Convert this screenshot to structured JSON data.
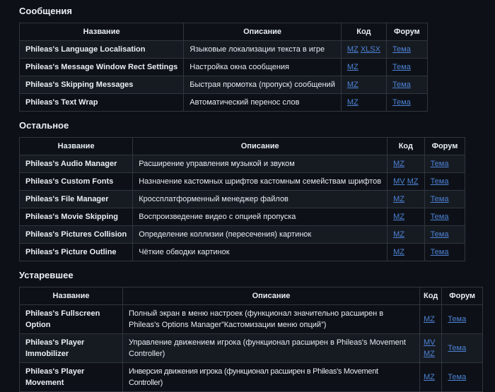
{
  "colors": {
    "page_background": "#0d1117",
    "row_muted_background": "#161b22",
    "table_border": "#30363d",
    "text": "#e6edf3",
    "link": "#4d82d6"
  },
  "sections": [
    {
      "title": "Сообщения",
      "columns": [
        "Название",
        "Описание",
        "Код",
        "Форум"
      ],
      "rows": [
        {
          "name": "Phileas's Language Localisation",
          "description": "Языковые локализации текста в игре",
          "code": [
            "MZ",
            "XLSX"
          ],
          "forum": "Тема"
        },
        {
          "name": "Phileas's Message Window Rect Settings",
          "description": "Настройка окна сообщения",
          "code": [
            "MZ"
          ],
          "forum": "Тема"
        },
        {
          "name": "Phileas's Skipping Messages",
          "description": "Быстрая промотка (пропуск) сообщений",
          "code": [
            "MZ"
          ],
          "forum": "Тема"
        },
        {
          "name": "Phileas's Text Wrap",
          "description": "Автоматический перенос слов",
          "code": [
            "MZ"
          ],
          "forum": "Тема"
        }
      ]
    },
    {
      "title": "Остальное",
      "columns": [
        "Название",
        "Описание",
        "Код",
        "Форум"
      ],
      "rows": [
        {
          "name": "Phileas's Audio Manager",
          "description": "Расширение управления музыкой и звуком",
          "code": [
            "MZ"
          ],
          "forum": "Тема"
        },
        {
          "name": "Phileas's Custom Fonts",
          "description": "Назначение кастомных шрифтов кастомным семействам шрифтов",
          "code": [
            "MV",
            "MZ"
          ],
          "forum": "Тема"
        },
        {
          "name": "Phileas's File Manager",
          "description": "Кроссплатформенный менеджер файлов",
          "code": [
            "MZ"
          ],
          "forum": "Тема"
        },
        {
          "name": "Phileas's Movie Skipping",
          "description": "Воспроизведение видео с опцией пропуска",
          "code": [
            "MZ"
          ],
          "forum": "Тема"
        },
        {
          "name": "Phileas's Pictures Collision",
          "description": "Определение коллизии (пересечения) картинок",
          "code": [
            "MZ"
          ],
          "forum": "Тема"
        },
        {
          "name": "Phileas's Picture Outline",
          "description": "Чёткие обводки картинок",
          "code": [
            "MZ"
          ],
          "forum": "Тема"
        }
      ]
    },
    {
      "title": "Устаревшее",
      "columns": [
        "Название",
        "Описание",
        "Код",
        "Форум"
      ],
      "rows": [
        {
          "name": "Phileas's Fullscreen Option",
          "description": "Полный экран в меню настроек (функционал значительно расширен в Phileas's Options Manager”Кастомизации меню опций”)",
          "code": [
            "MZ"
          ],
          "forum": "Тема"
        },
        {
          "name": "Phileas's Player Immobilizer",
          "description": "Управление движением игрока (функционал расширен в Phileas's Movement Controller)",
          "code": [
            "MV",
            "MZ"
          ],
          "forum": "Тема"
        },
        {
          "name": "Phileas's Player Movement",
          "description": "Инверсия движения игрока (функционал расширен в Phileas's Movement Controller)",
          "code": [
            "MZ"
          ],
          "forum": "Тема"
        }
      ]
    }
  ]
}
